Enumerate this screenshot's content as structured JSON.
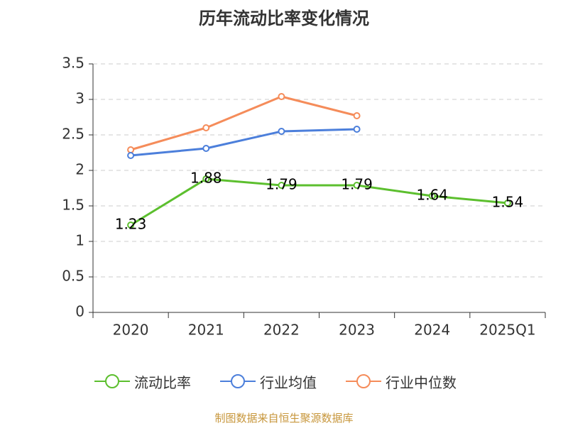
{
  "title": "历年流动比率变化情况",
  "source": "制图数据来自恒生聚源数据库",
  "colors": {
    "current_ratio": "#5cbf2e",
    "industry_mean": "#4c7fdb",
    "industry_median": "#f58c5a",
    "axis": "#333333",
    "grid": "#cccccc",
    "text": "#333333",
    "source": "#c7963b"
  },
  "chart_data": {
    "type": "line",
    "title": "历年流动比率变化情况",
    "categories": [
      "2020",
      "2021",
      "2022",
      "2023",
      "2024",
      "2025Q1"
    ],
    "ylim": [
      0,
      3.5
    ],
    "yticks": [
      "0",
      "0.5",
      "1",
      "1.5",
      "2",
      "2.5",
      "3",
      "3.5"
    ],
    "grid": true,
    "legend_position": "bottom",
    "xlabel": "",
    "ylabel": "",
    "series": [
      {
        "key": "current_ratio",
        "name": "流动比率",
        "values": [
          1.23,
          1.88,
          1.79,
          1.79,
          1.64,
          1.54
        ],
        "labels": [
          "1.23",
          "1.88",
          "1.79",
          "1.79",
          "1.64",
          "1.54"
        ]
      },
      {
        "key": "industry_mean",
        "name": "行业均值",
        "values": [
          2.21,
          2.31,
          2.55,
          2.58,
          null,
          null
        ]
      },
      {
        "key": "industry_median",
        "name": "行业中位数",
        "values": [
          2.29,
          2.6,
          3.04,
          2.77,
          null,
          null
        ]
      }
    ]
  }
}
